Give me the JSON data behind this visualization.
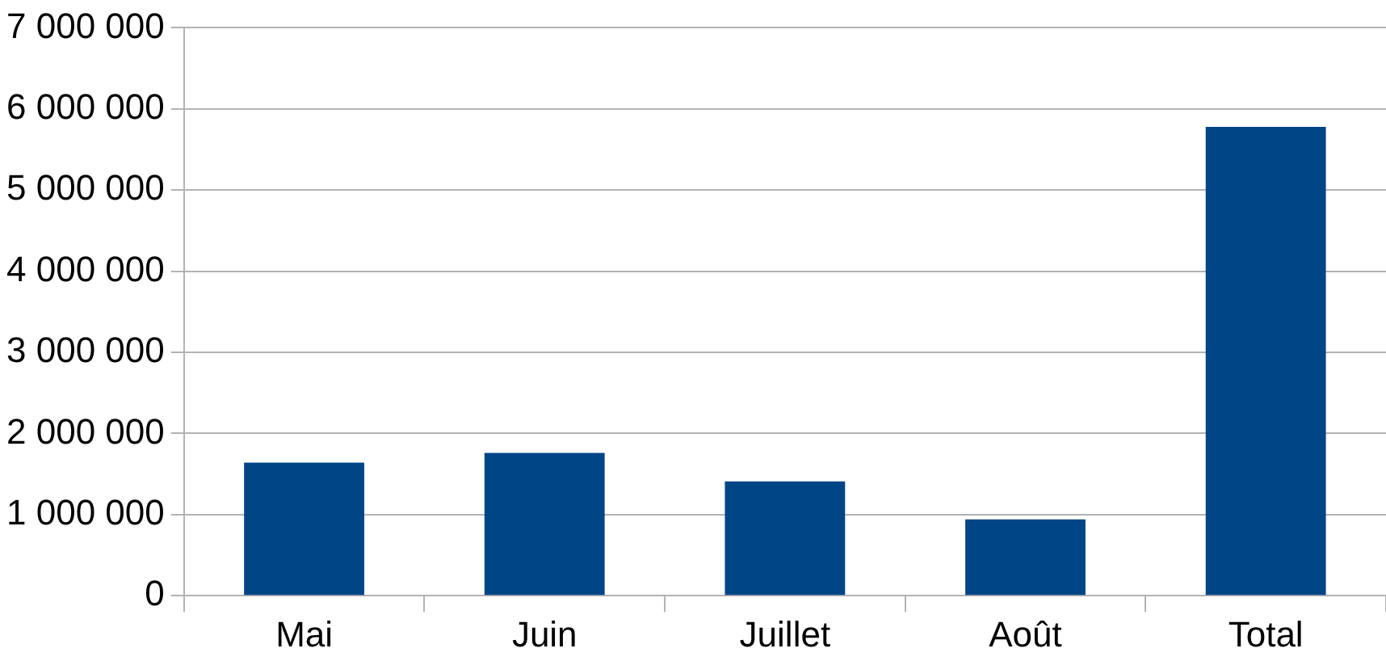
{
  "chart_data": {
    "type": "bar",
    "categories": [
      "Mai",
      "Juin",
      "Juillet",
      "Août",
      "Total"
    ],
    "values": [
      1640000,
      1760000,
      1410000,
      940000,
      5780000
    ],
    "color": "#004586",
    "ylim": [
      0,
      7000000
    ],
    "yticks": [
      {
        "value": 0,
        "label": "0"
      },
      {
        "value": 1000000,
        "label": "1 000 000"
      },
      {
        "value": 2000000,
        "label": "2 000 000"
      },
      {
        "value": 3000000,
        "label": "3 000 000"
      },
      {
        "value": 4000000,
        "label": "4 000 000"
      },
      {
        "value": 5000000,
        "label": "5 000 000"
      },
      {
        "value": 6000000,
        "label": "6 000 000"
      },
      {
        "value": 7000000,
        "label": "7 000 000"
      }
    ],
    "grid": "y",
    "legend": false
  }
}
